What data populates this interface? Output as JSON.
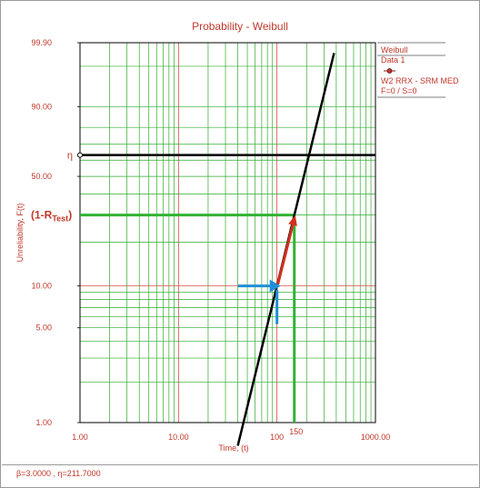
{
  "chart_data": {
    "type": "line",
    "title": "Probability - Weibull",
    "xlabel": "Time, (t)",
    "ylabel": "Unreliability, F(t)",
    "xscale": "log",
    "yscale": "weibull",
    "xlim": [
      1,
      1000
    ],
    "ylim": [
      1,
      99.9
    ],
    "x_ticks": [
      "1.00",
      "10.00",
      "100",
      "1000.00"
    ],
    "x_extra_tick": "150",
    "y_ticks": [
      "1.00",
      "5.00",
      "10.00",
      "50.00",
      "90.00",
      "99.90"
    ],
    "grid": true,
    "series": [
      {
        "name": "W2 RRX - SRM MED",
        "beta": 3.0,
        "eta": 211.7
      }
    ],
    "annotations": {
      "eta_label": "η",
      "eta_line_y": 63.2,
      "rtest_label_prefix": "(1-R",
      "rtest_label_sub": "Test",
      "rtest_label_suffix": ")",
      "rtest_value": 30.0,
      "t_test": 150,
      "arrow_start_x": 100,
      "arrow_start_y": 10.0
    }
  },
  "legend": {
    "title": "Weibull",
    "dataset": "Data 1",
    "series_name": "W2 RRX - SRM MED",
    "counts": "F=0 / S=0",
    "placement": "right"
  },
  "footer": {
    "params": "β=3.0000 , η=211.7000"
  },
  "colors": {
    "frame": "#000000",
    "grid_minor": "#2eab2e",
    "grid_major": "#d9534f",
    "fit_line": "#000000",
    "eta_line": "#000000",
    "rtest_line": "#33b233",
    "red_arrow": "#d32f1e",
    "blue_arrow": "#1f8fd8",
    "text": "#c0392b"
  }
}
